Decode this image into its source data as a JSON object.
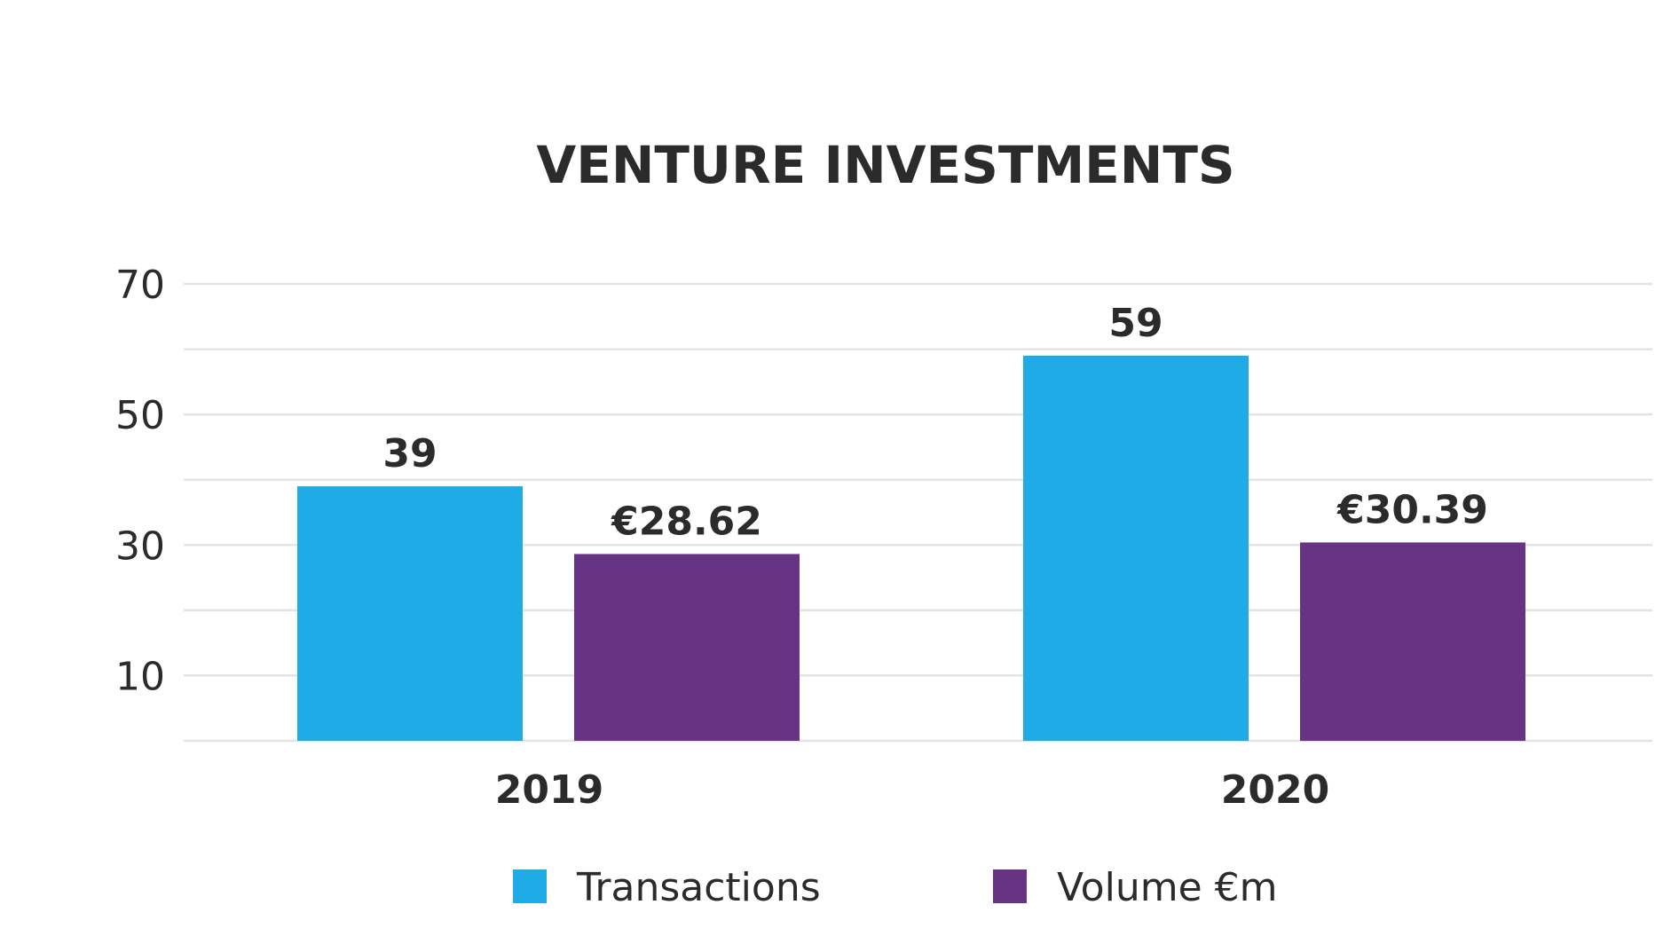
{
  "chart_data": {
    "type": "bar",
    "title": "VENTURE INVESTMENTS",
    "xlabel": "",
    "ylabel": "",
    "categories": [
      "2019",
      "2020"
    ],
    "series": [
      {
        "name": "Transactions",
        "values": [
          39,
          59
        ],
        "labels": [
          "39",
          "59"
        ],
        "color": "#1EABE6"
      },
      {
        "name": "Volume €m",
        "values": [
          28.62,
          30.39
        ],
        "labels": [
          "€28.62",
          "€30.39"
        ],
        "color": "#663482"
      }
    ],
    "ylim": [
      0,
      70
    ],
    "yticks": [
      10,
      30,
      50,
      70
    ],
    "ytick_labels": [
      "10",
      "30",
      "50",
      "70"
    ],
    "gridlines_every": 10,
    "grid": true,
    "legend_position": "bottom"
  }
}
